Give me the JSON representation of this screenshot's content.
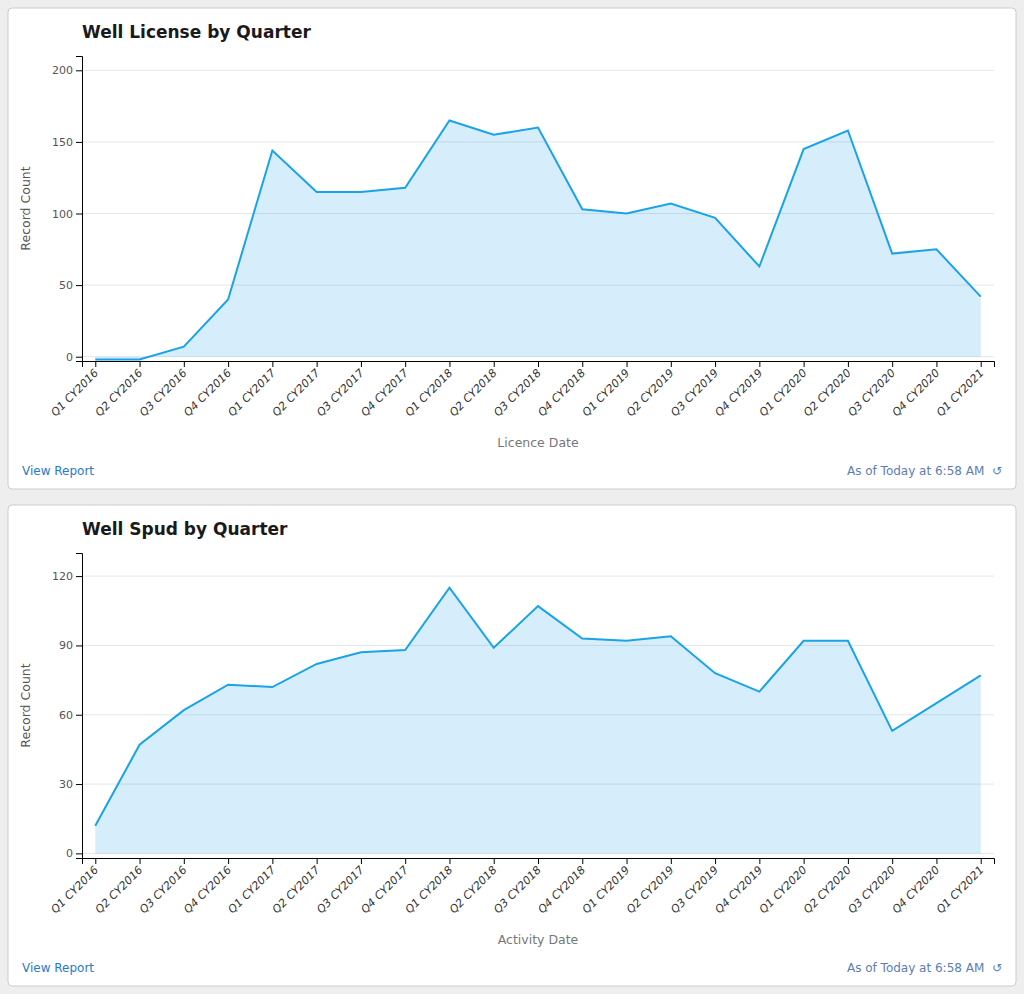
{
  "chart_data": [
    {
      "type": "area",
      "title": "Well License by Quarter",
      "xlabel": "Licence Date",
      "ylabel": "Record Count",
      "categories": [
        "Q1 CY2016",
        "Q2 CY2016",
        "Q3 CY2016",
        "Q4 CY2016",
        "Q1 CY2017",
        "Q2 CY2017",
        "Q3 CY2017",
        "Q4 CY2017",
        "Q1 CY2018",
        "Q2 CY2018",
        "Q3 CY2018",
        "Q4 CY2018",
        "Q1 CY2019",
        "Q2 CY2019",
        "Q3 CY2019",
        "Q4 CY2019",
        "Q1 CY2020",
        "Q2 CY2020",
        "Q3 CY2020",
        "Q4 CY2020",
        "Q1 CY2021"
      ],
      "values": [
        -2,
        -2,
        7,
        40,
        144,
        115,
        115,
        118,
        165,
        155,
        160,
        103,
        100,
        107,
        97,
        63,
        145,
        158,
        72,
        75,
        42
      ],
      "color": "#1aa3e8",
      "ylim": [
        -3,
        210
      ],
      "yticks": [
        0,
        50,
        100,
        150,
        200
      ],
      "grid": true,
      "annotations": [
        "View Report",
        "As of Today at 6:58 AM  ↺"
      ]
    },
    {
      "type": "area",
      "title": "Well Spud by Quarter",
      "xlabel": "Activity Date",
      "ylabel": "Record Count",
      "categories": [
        "Q1 CY2016",
        "Q2 CY2016",
        "Q3 CY2016",
        "Q4 CY2016",
        "Q1 CY2017",
        "Q2 CY2017",
        "Q3 CY2017",
        "Q4 CY2017",
        "Q1 CY2018",
        "Q2 CY2018",
        "Q3 CY2018",
        "Q4 CY2018",
        "Q1 CY2019",
        "Q2 CY2019",
        "Q3 CY2019",
        "Q4 CY2019",
        "Q1 CY2020",
        "Q2 CY2020",
        "Q3 CY2020",
        "Q4 CY2020",
        "Q1 CY2021"
      ],
      "values": [
        12,
        47,
        62,
        73,
        72,
        82,
        87,
        88,
        115,
        89,
        107,
        93,
        92,
        94,
        78,
        70,
        92,
        92,
        53,
        65,
        77
      ],
      "color": "#1aa3e8",
      "ylim": [
        -2,
        130
      ],
      "yticks": [
        0,
        30,
        60,
        90,
        120
      ],
      "grid": true,
      "annotations": [
        "View Report",
        "As of Today at 6:58 AM  ↺"
      ]
    }
  ]
}
